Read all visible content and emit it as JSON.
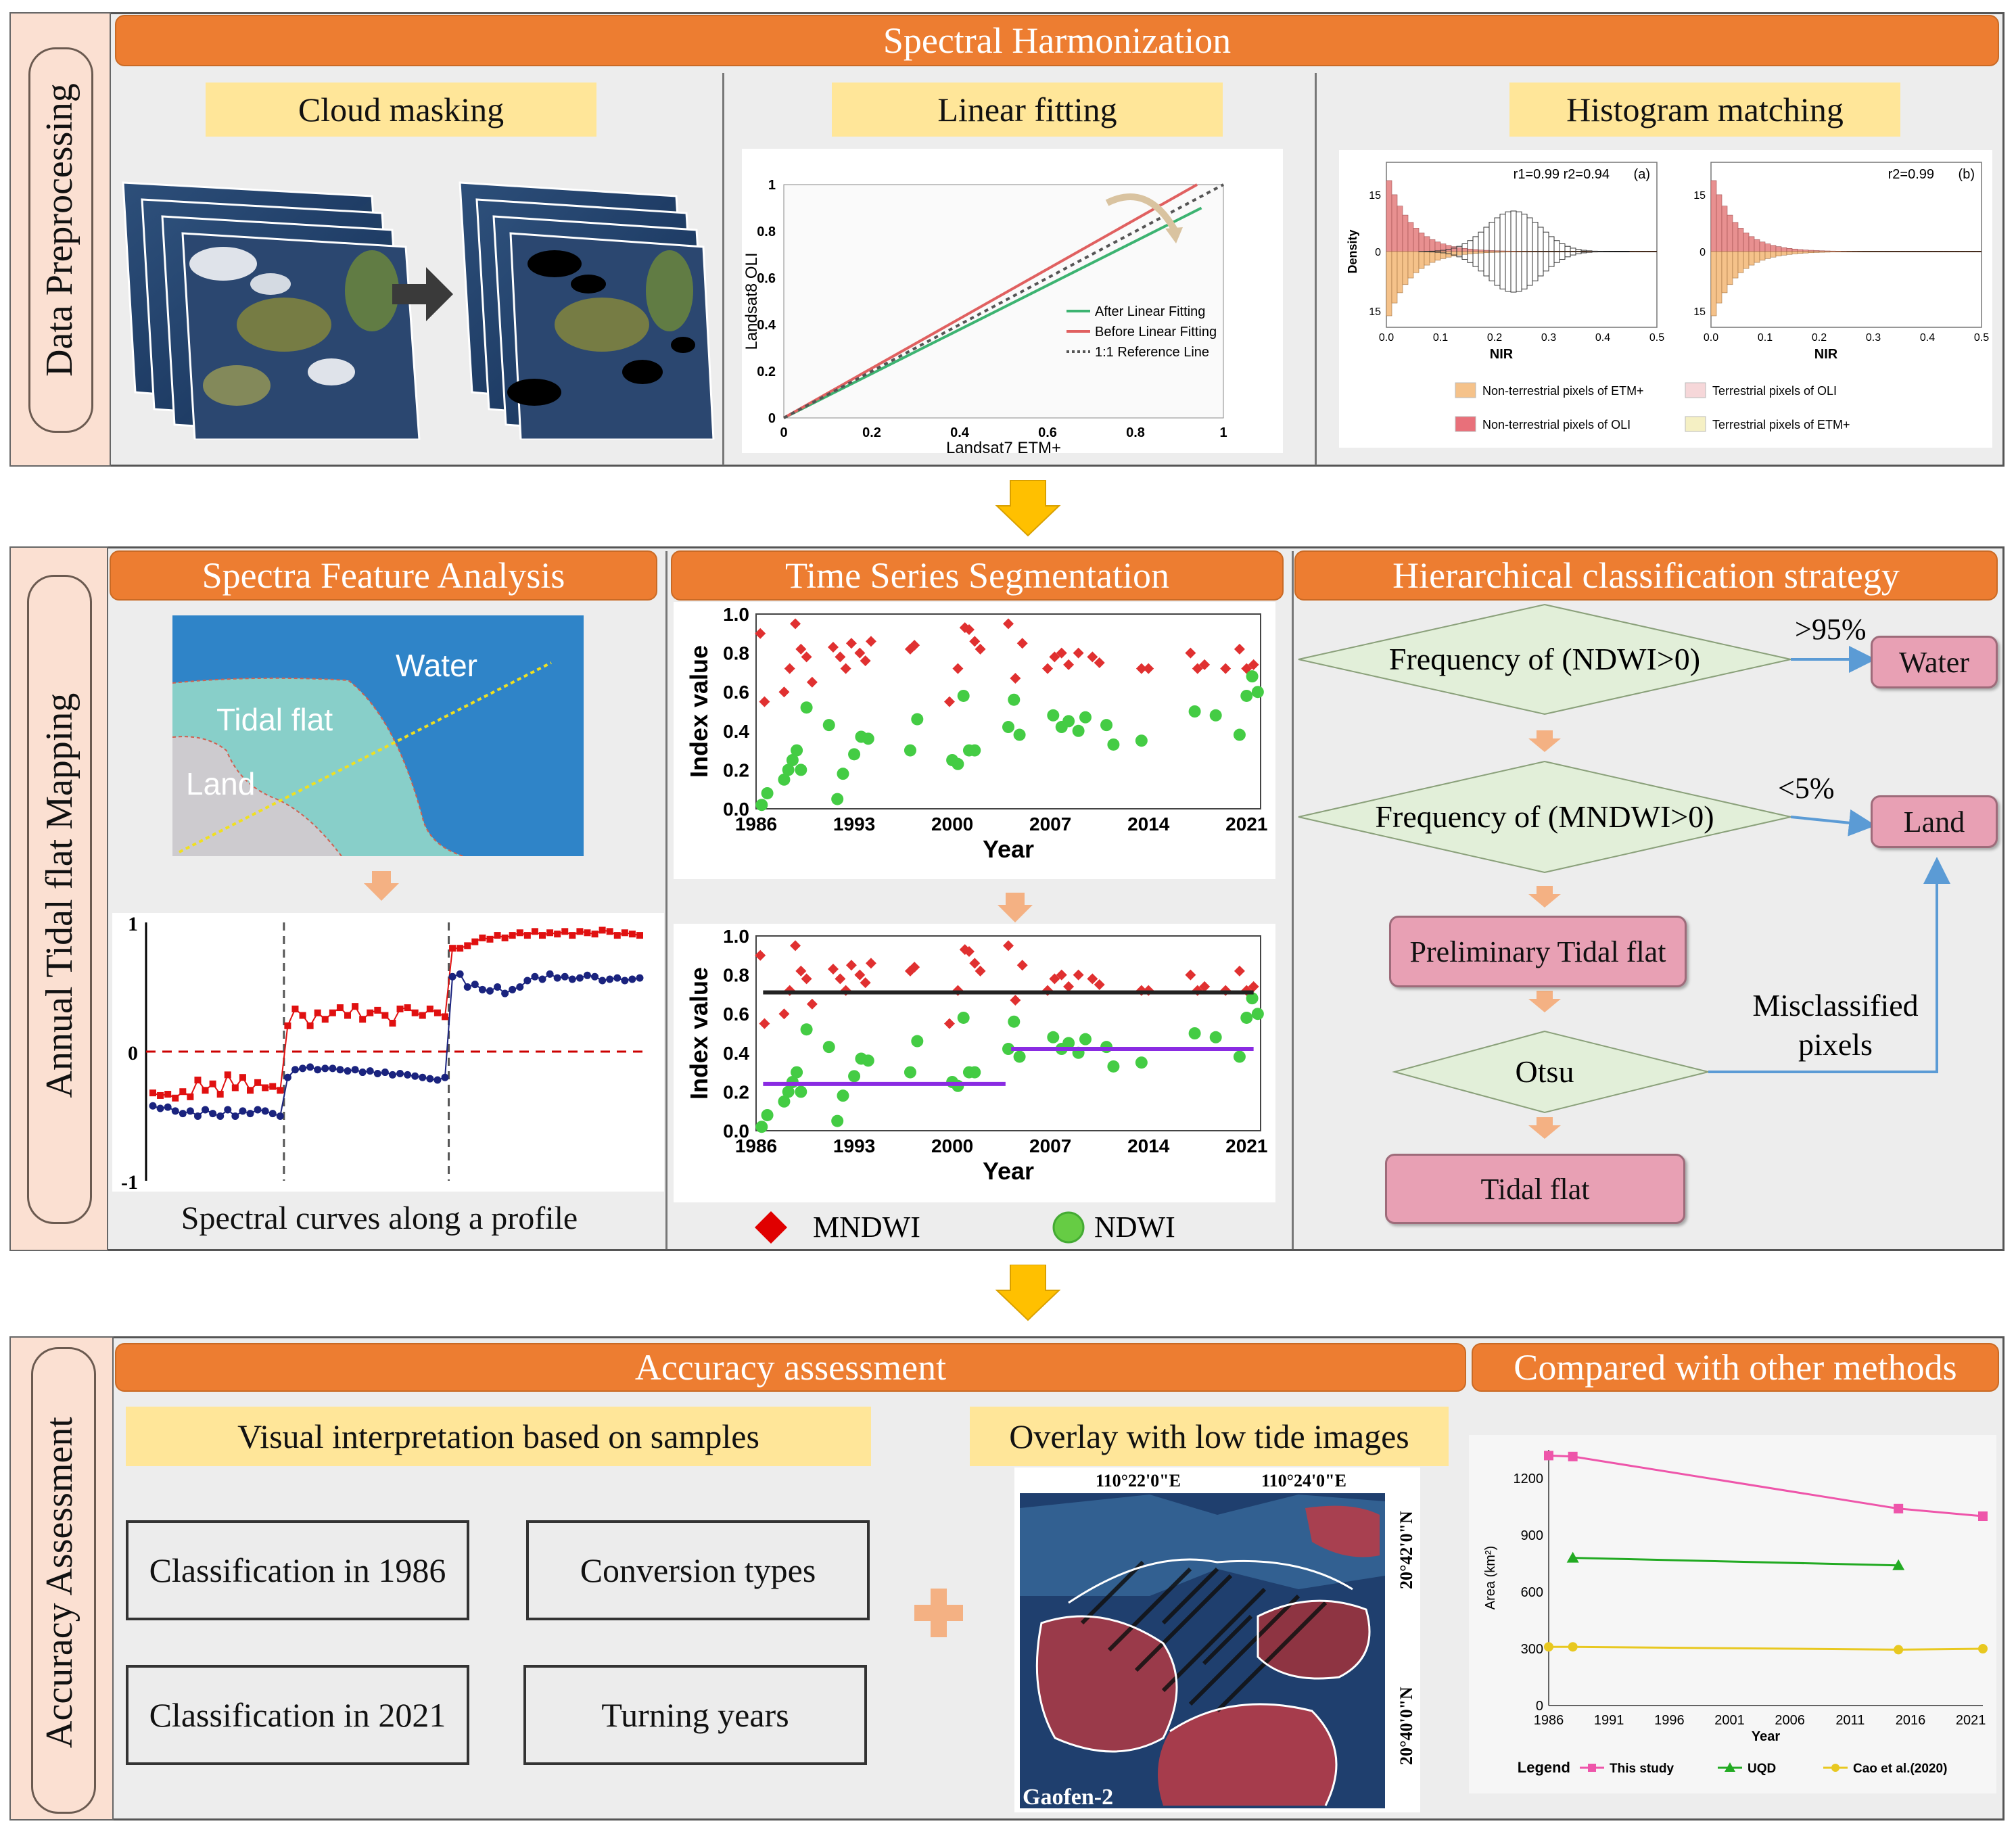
{
  "sections": {
    "preprocessing": {
      "label": "Data Preprocessing"
    },
    "mapping": {
      "label": "Annual Tidal flat Mapping"
    },
    "accuracy": {
      "label": "Accuracy Assessment"
    }
  },
  "preprocessing": {
    "header": "Spectral Harmonization",
    "cloud": {
      "title": "Cloud masking"
    },
    "linear": {
      "title": "Linear fitting",
      "chart_data": {
        "type": "line",
        "xlabel": "Landsat7 ETM+",
        "ylabel": "Landsat8 OLI",
        "xlim": [
          0,
          1
        ],
        "ylim": [
          0,
          1
        ],
        "xticks": [
          "0",
          "0.2",
          "0.4",
          "0.6",
          "0.8",
          "1"
        ],
        "yticks": [
          "0",
          "0.2",
          "0.4",
          "0.6",
          "0.8",
          "1"
        ],
        "series": [
          {
            "name": "After Linear Fitting",
            "color": "#3cb371",
            "x": [
              0,
              0.95
            ],
            "y": [
              0,
              0.9
            ]
          },
          {
            "name": "Before Linear Fitting",
            "color": "#e06060",
            "x": [
              0,
              0.94
            ],
            "y": [
              0,
              1.0
            ]
          },
          {
            "name": "1:1 Reference Line",
            "color": "#555555",
            "x": [
              0,
              1.0
            ],
            "y": [
              0,
              1.0
            ]
          }
        ]
      }
    },
    "histogram": {
      "title": "Histogram matching",
      "panel_a": {
        "tag": "(a)",
        "stats": "r1=0.99   r2=0.94"
      },
      "panel_b": {
        "tag": "(b)",
        "stats": "r2=0.99"
      },
      "ylabel": "Density",
      "xlabel": "NIR",
      "yticks": [
        "15",
        "0",
        "15"
      ],
      "xticks": [
        "0.0",
        "0.1",
        "0.2",
        "0.3",
        "0.4",
        "0.5"
      ],
      "legend": [
        {
          "label": "Non-terrestrial pixels of ETM+",
          "color": "#f5c28a"
        },
        {
          "label": "Terrestrial pixels of OLI",
          "color": "#f6d7d9"
        },
        {
          "label": "Non-terrestrial pixels of OLI",
          "color": "#e8707a"
        },
        {
          "label": "Terrestrial pixels of ETM+",
          "color": "#f5f0c4"
        }
      ]
    }
  },
  "mapping": {
    "spectra": {
      "title": "Spectra Feature Analysis",
      "map_labels": {
        "water": "Water",
        "tidal": "Tidal flat",
        "land": "Land"
      },
      "caption": "Spectral curves along a profile",
      "chart_data": {
        "type": "line",
        "yticks": [
          "1",
          "0",
          "-1"
        ],
        "ylim": [
          -1,
          1
        ],
        "series": [
          {
            "name": "upper",
            "color": "#e01010",
            "values": [
              -0.32,
              -0.34,
              -0.33,
              -0.36,
              -0.31,
              -0.35,
              -0.22,
              -0.3,
              -0.25,
              -0.33,
              -0.18,
              -0.28,
              -0.2,
              -0.3,
              -0.24,
              -0.28,
              -0.27,
              -0.3,
              0.2,
              0.33,
              0.28,
              0.2,
              0.3,
              0.25,
              0.3,
              0.34,
              0.28,
              0.35,
              0.25,
              0.3,
              0.32,
              0.28,
              0.22,
              0.33,
              0.34,
              0.3,
              0.28,
              0.33,
              0.3,
              0.27,
              0.8,
              0.8,
              0.82,
              0.85,
              0.88,
              0.87,
              0.9,
              0.88,
              0.9,
              0.92,
              0.9,
              0.93,
              0.9,
              0.92,
              0.91,
              0.93,
              0.9,
              0.93,
              0.92,
              0.91,
              0.94,
              0.93,
              0.9,
              0.92,
              0.91,
              0.9
            ]
          },
          {
            "name": "lower",
            "color": "#1a237e",
            "values": [
              -0.42,
              -0.44,
              -0.43,
              -0.46,
              -0.48,
              -0.46,
              -0.5,
              -0.45,
              -0.48,
              -0.5,
              -0.45,
              -0.5,
              -0.46,
              -0.48,
              -0.45,
              -0.46,
              -0.48,
              -0.5,
              -0.2,
              -0.14,
              -0.13,
              -0.12,
              -0.14,
              -0.13,
              -0.13,
              -0.14,
              -0.15,
              -0.14,
              -0.16,
              -0.15,
              -0.17,
              -0.16,
              -0.18,
              -0.17,
              -0.18,
              -0.19,
              -0.2,
              -0.21,
              -0.22,
              -0.2,
              0.58,
              0.6,
              0.5,
              0.52,
              0.48,
              0.47,
              0.5,
              0.45,
              0.48,
              0.5,
              0.55,
              0.58,
              0.56,
              0.6,
              0.57,
              0.58,
              0.56,
              0.57,
              0.59,
              0.58,
              0.55,
              0.56,
              0.57,
              0.55,
              0.56,
              0.57
            ]
          }
        ]
      }
    },
    "timeseries": {
      "title": "Time Series Segmentation",
      "ylabel": "Index value",
      "xlabel": "Year",
      "xticks": [
        "1986",
        "1993",
        "2000",
        "2007",
        "2014",
        "2021"
      ],
      "yticks": [
        "0.0",
        "0.2",
        "0.4",
        "0.6",
        "0.8",
        "1.0"
      ],
      "legend": {
        "mndwi": "MNDWI",
        "ndwi": "NDWI"
      },
      "chart_data": {
        "type": "scatter",
        "xlim": [
          1986,
          2022
        ],
        "ylim": [
          0,
          1
        ],
        "series": [
          {
            "name": "MNDWI",
            "color": "#e03030",
            "x": [
              1986.3,
              1986.6,
              1988,
              1988.4,
              1988.8,
              1989.2,
              1989.6,
              1990,
              1991.5,
              1992,
              1992.4,
              1992.8,
              1993.4,
              1993.8,
              1994.2,
              1997,
              1997.3,
              1999.8,
              2000.4,
              2000.9,
              2001.2,
              2001.6,
              2002,
              2004,
              2004.5,
              2005,
              2006.8,
              2007.3,
              2007.8,
              2008.3,
              2009,
              2010,
              2010.5,
              2013.5,
              2014,
              2017,
              2017.5,
              2018,
              2019.5,
              2020.5,
              2021,
              2021.5
            ],
            "y": [
              0.9,
              0.55,
              0.6,
              0.72,
              0.95,
              0.82,
              0.78,
              0.65,
              0.83,
              0.78,
              0.72,
              0.85,
              0.8,
              0.76,
              0.86,
              0.82,
              0.84,
              0.55,
              0.72,
              0.93,
              0.92,
              0.86,
              0.82,
              0.95,
              0.67,
              0.85,
              0.72,
              0.78,
              0.8,
              0.74,
              0.8,
              0.78,
              0.75,
              0.72,
              0.72,
              0.8,
              0.72,
              0.74,
              0.72,
              0.82,
              0.72,
              0.74
            ]
          },
          {
            "name": "NDWI",
            "color": "#44cc44",
            "x": [
              1986.4,
              1986.8,
              1988,
              1988.3,
              1988.6,
              1988.9,
              1989.2,
              1989.6,
              1991.2,
              1991.8,
              1992.2,
              1993,
              1993.5,
              1994,
              1997,
              1997.5,
              2000,
              2000.4,
              2000.8,
              2001.2,
              2001.6,
              2004,
              2004.4,
              2004.8,
              2007.2,
              2007.8,
              2008.3,
              2009,
              2009.5,
              2011,
              2011.5,
              2013.5,
              2017.3,
              2018.8,
              2020.5,
              2021,
              2021.4,
              2021.8
            ],
            "y": [
              0.02,
              0.08,
              0.15,
              0.2,
              0.25,
              0.3,
              0.2,
              0.52,
              0.43,
              0.05,
              0.18,
              0.28,
              0.37,
              0.36,
              0.3,
              0.46,
              0.25,
              0.23,
              0.58,
              0.3,
              0.3,
              0.42,
              0.56,
              0.38,
              0.48,
              0.42,
              0.45,
              0.4,
              0.47,
              0.43,
              0.33,
              0.35,
              0.5,
              0.48,
              0.38,
              0.58,
              0.68,
              0.6
            ]
          },
          {
            "name": "MNDWI segment",
            "color": "#222222",
            "x": [
              1986.5,
              2021.5
            ],
            "y": [
              0.71,
              0.71
            ]
          },
          {
            "name": "NDWI segment 1",
            "color": "#8a2be2",
            "x": [
              1986.5,
              2003.8
            ],
            "y": [
              0.24,
              0.24
            ]
          },
          {
            "name": "NDWI segment 2",
            "color": "#8a2be2",
            "x": [
              2004.2,
              2021.5
            ],
            "y": [
              0.42,
              0.42
            ]
          }
        ]
      }
    },
    "hierarchy": {
      "title": "Hierarchical classification strategy",
      "decision1": "Frequency of (NDWI>0)",
      "threshold1": ">95%",
      "water": "Water",
      "decision2": "Frequency of (MNDWI>0)",
      "threshold2": "<5%",
      "land": "Land",
      "preliminary": "Preliminary Tidal flat",
      "otsu": "Otsu",
      "misclassified": "Misclassified pixels",
      "tidal": "Tidal flat"
    }
  },
  "accuracy": {
    "header": "Accuracy assessment",
    "visual": "Visual interpretation based on samples",
    "overlay": "Overlay with low tide images",
    "boxes": [
      "Classification in 1986",
      "Conversion types",
      "Classification in 2021",
      "Turning years"
    ],
    "map": {
      "lon1": "110°22'0\"E",
      "lon2": "110°24'0\"E",
      "lat1": "20°42'0\"N",
      "lat2": "20°40'0\"N",
      "sensor": "Gaofen-2"
    },
    "compare": {
      "header": "Compared with other methods",
      "chart_data": {
        "type": "line",
        "xlabel": "Year",
        "ylabel": "Area (km²)",
        "xlim": [
          1986,
          2022
        ],
        "ylim": [
          0,
          1350
        ],
        "xticks": [
          "1986",
          "1991",
          "1996",
          "2001",
          "2006",
          "2011",
          "2016",
          "2021"
        ],
        "yticks": [
          "0",
          "300",
          "600",
          "900",
          "1200"
        ],
        "legend_title": "Legend",
        "series": [
          {
            "name": "This study",
            "color": "#ee55aa",
            "x": [
              1986,
              1988,
              2015,
              2022
            ],
            "y": [
              1320,
              1315,
              1040,
              1000
            ]
          },
          {
            "name": "UQD",
            "color": "#22aa22",
            "x": [
              1988,
              2015
            ],
            "y": [
              780,
              740
            ]
          },
          {
            "name": "Cao et al.(2020)",
            "color": "#e8c820",
            "x": [
              1986,
              1988,
              2015,
              2022
            ],
            "y": [
              310,
              310,
              295,
              300
            ]
          }
        ]
      }
    }
  }
}
